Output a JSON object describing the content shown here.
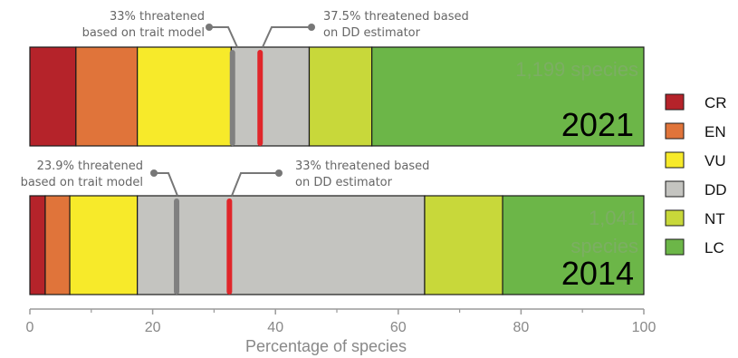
{
  "chart_data": {
    "type": "bar",
    "orientation": "horizontal-stacked",
    "xlabel": "Percentage of species",
    "xlim": [
      0,
      100
    ],
    "xticks": [
      0,
      20,
      40,
      60,
      80,
      100
    ],
    "categories": [
      "CR",
      "EN",
      "VU",
      "DD",
      "NT",
      "LC"
    ],
    "colors": {
      "CR": "#b5232a",
      "EN": "#e0743a",
      "VU": "#f7ea2a",
      "DD": "#c4c4c0",
      "NT": "#c8d83a",
      "LC": "#6cb648"
    },
    "legend": {
      "position": "right",
      "labels": [
        "CR",
        "EN",
        "VU",
        "DD",
        "NT",
        "LC"
      ]
    },
    "series": [
      {
        "name": "2021",
        "count_label": "1,199 species",
        "values": {
          "CR": 7.5,
          "EN": 10,
          "VU": 15.3,
          "DD": 12.7,
          "NT": 10.2,
          "LC": 44.3
        },
        "markers": [
          {
            "value": 33,
            "color": "#808080",
            "label": "33% threatened\nbased on trait model"
          },
          {
            "value": 37.5,
            "color": "#e0262a",
            "label": "37.5% threatened based\non DD estimator"
          }
        ]
      },
      {
        "name": "2014",
        "count_label": "1,041\nspecies",
        "values": {
          "CR": 2.5,
          "EN": 4,
          "VU": 11,
          "DD": 46.8,
          "NT": 12.7,
          "LC": 23
        },
        "markers": [
          {
            "value": 23.9,
            "color": "#808080",
            "label": "23.9% threatened\nbased on trait model"
          },
          {
            "value": 32.5,
            "color": "#e0262a",
            "label": "33% threatened based\non DD estimator"
          }
        ]
      }
    ]
  }
}
